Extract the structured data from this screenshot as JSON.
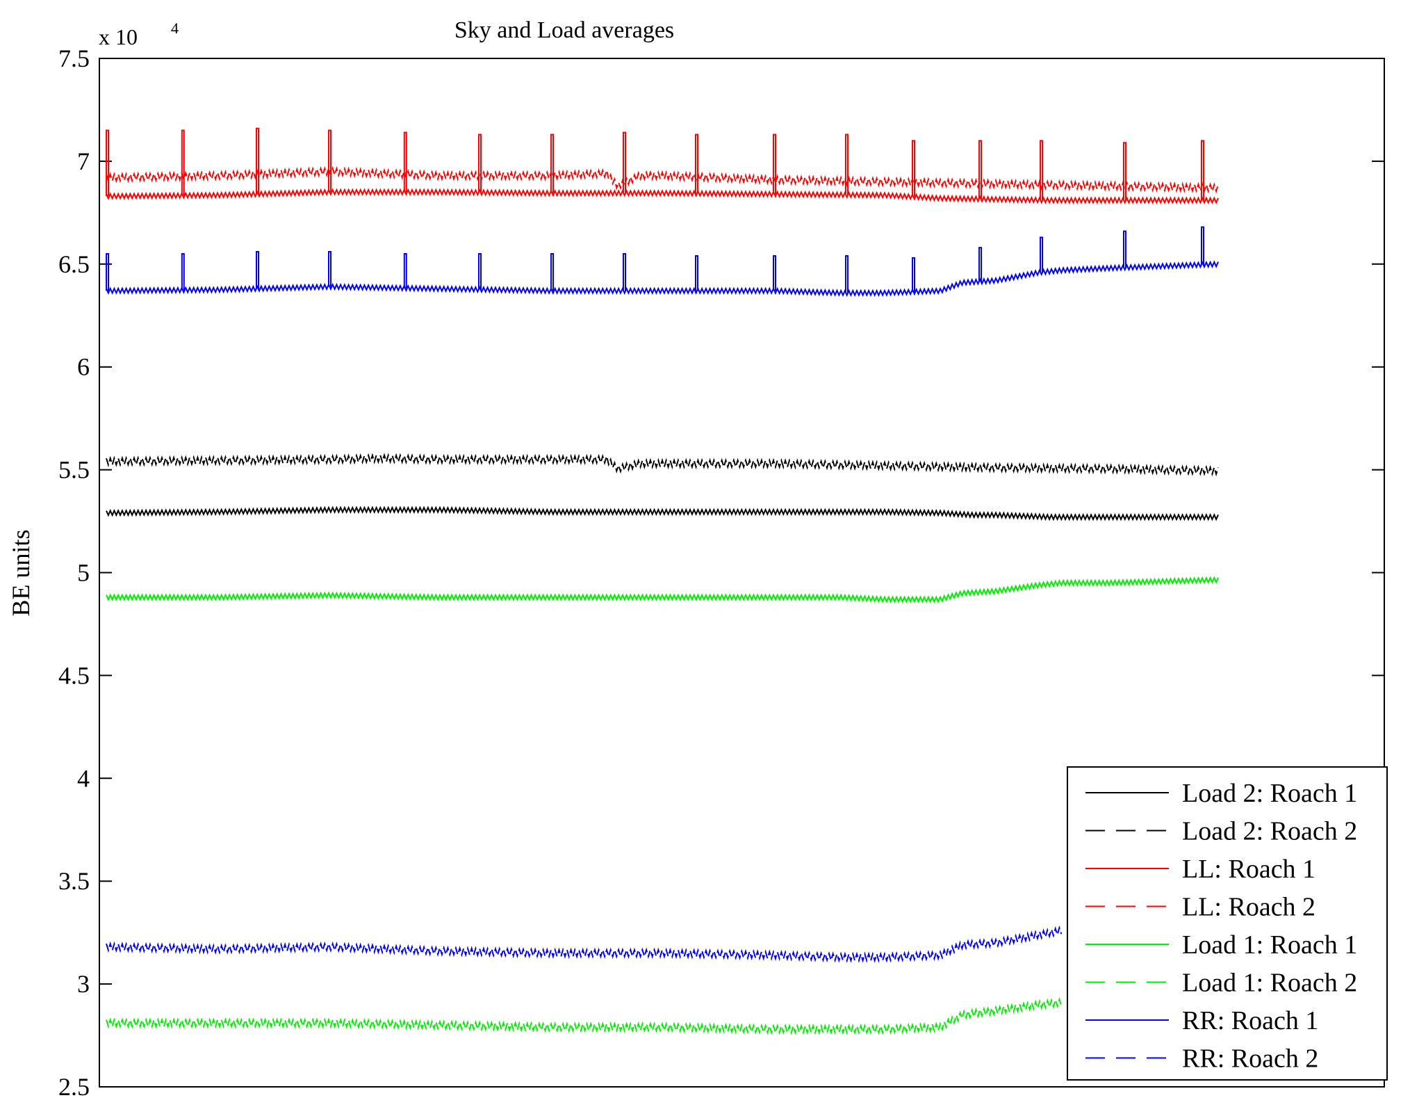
{
  "chart_data": {
    "type": "line",
    "title": "Sky and Load averages",
    "xlabel": "",
    "ylabel": "BE units",
    "y_scale_base": "x 10",
    "y_scale_exp": "4",
    "ylim": [
      25000,
      75000
    ],
    "xlim": [
      0,
      1
    ],
    "x_ticks": false,
    "yticks": [
      25000,
      30000,
      35000,
      40000,
      45000,
      50000,
      55000,
      60000,
      65000,
      70000,
      75000
    ],
    "ytick_labels": [
      "2.5",
      "3",
      "3.5",
      "4",
      "4.5",
      "5",
      "5.5",
      "6",
      "6.5",
      "7",
      "7.5"
    ],
    "grid": false,
    "legend_position": "bottom-right",
    "series": [
      {
        "name": "Load 2: Roach 1",
        "color": "#000000",
        "dash": "solid",
        "x": [
          0,
          0.1,
          0.2,
          0.3,
          0.4,
          0.5,
          0.6,
          0.7,
          0.75,
          0.78,
          0.8,
          0.85,
          0.9,
          0.95,
          1.0
        ],
        "y": [
          52900,
          52950,
          53050,
          53050,
          52950,
          52950,
          52950,
          52950,
          52900,
          52800,
          52800,
          52700,
          52700,
          52700,
          52700
        ]
      },
      {
        "name": "Load 2: Roach 2",
        "color": "#000000",
        "dash": "dashed",
        "x": [
          0,
          0.1,
          0.2,
          0.25,
          0.3,
          0.4,
          0.45,
          0.46,
          0.48,
          0.5,
          0.6,
          0.7,
          0.8,
          0.9,
          1.0
        ],
        "y": [
          55400,
          55450,
          55500,
          55550,
          55500,
          55500,
          55500,
          55050,
          55300,
          55300,
          55300,
          55200,
          55100,
          55050,
          54950
        ]
      },
      {
        "name": "LL: Roach 1",
        "color": "#ff0000",
        "dash": "solid",
        "x": [
          0,
          0.1,
          0.2,
          0.3,
          0.4,
          0.5,
          0.6,
          0.7,
          0.75,
          0.8,
          0.85,
          0.9,
          1.0
        ],
        "y": [
          68300,
          68350,
          68500,
          68500,
          68450,
          68450,
          68400,
          68350,
          68200,
          68150,
          68100,
          68100,
          68100
        ],
        "spikes_x": [
          0,
          0.068,
          0.135,
          0.2,
          0.268,
          0.335,
          0.4,
          0.465,
          0.53,
          0.6,
          0.665,
          0.725,
          0.785,
          0.84,
          0.915,
          0.985
        ],
        "spikes_y": [
          71500,
          71500,
          71600,
          71500,
          71400,
          71300,
          71300,
          71400,
          71300,
          71300,
          71300,
          71000,
          71000,
          71000,
          70900,
          71000
        ]
      },
      {
        "name": "LL: Roach 2",
        "color": "#ff0000",
        "dash": "dashed",
        "x": [
          0,
          0.1,
          0.2,
          0.3,
          0.4,
          0.45,
          0.46,
          0.48,
          0.5,
          0.6,
          0.7,
          0.8,
          0.9,
          1.0
        ],
        "y": [
          69200,
          69300,
          69500,
          69300,
          69300,
          69400,
          68800,
          69300,
          69300,
          69100,
          69000,
          68900,
          68800,
          68700
        ]
      },
      {
        "name": "Load 1: Roach 1",
        "color": "#00ee00",
        "dash": "solid",
        "x": [
          0,
          0.1,
          0.2,
          0.3,
          0.4,
          0.5,
          0.6,
          0.66,
          0.7,
          0.75,
          0.77,
          0.8,
          0.84,
          0.86,
          0.9,
          1.0
        ],
        "y": [
          48800,
          48800,
          48900,
          48800,
          48800,
          48800,
          48800,
          48800,
          48700,
          48700,
          49000,
          49100,
          49400,
          49500,
          49500,
          49650
        ]
      },
      {
        "name": "Load 1: Roach 2",
        "color": "#00ee00",
        "dash": "dashed",
        "x": [
          0,
          0.1,
          0.2,
          0.3,
          0.4,
          0.5,
          0.6,
          0.66,
          0.7,
          0.75,
          0.77,
          0.8,
          0.84,
          0.86
        ],
        "y": [
          28100,
          28100,
          28100,
          28000,
          27900,
          27900,
          27800,
          27800,
          27800,
          27900,
          28500,
          28700,
          29000,
          29100
        ]
      },
      {
        "name": "RR: Roach 1",
        "color": "#0000ff",
        "dash": "solid",
        "x": [
          0,
          0.1,
          0.2,
          0.3,
          0.4,
          0.5,
          0.6,
          0.66,
          0.7,
          0.75,
          0.77,
          0.8,
          0.84,
          0.86,
          0.9,
          1.0
        ],
        "y": [
          63700,
          63750,
          63900,
          63800,
          63700,
          63700,
          63700,
          63600,
          63600,
          63700,
          64100,
          64200,
          64600,
          64700,
          64800,
          65000
        ],
        "spikes_x": [
          0,
          0.068,
          0.135,
          0.2,
          0.268,
          0.335,
          0.4,
          0.465,
          0.53,
          0.6,
          0.665,
          0.725,
          0.785,
          0.84,
          0.915,
          0.985
        ],
        "spikes_y": [
          65500,
          65500,
          65600,
          65600,
          65500,
          65500,
          65500,
          65500,
          65400,
          65400,
          65400,
          65300,
          65800,
          66300,
          66600,
          66800
        ]
      },
      {
        "name": "RR: Roach 2",
        "color": "#0000ff",
        "dash": "dashed",
        "x": [
          0,
          0.1,
          0.2,
          0.3,
          0.4,
          0.5,
          0.6,
          0.66,
          0.7,
          0.75,
          0.77,
          0.8,
          0.84,
          0.86
        ],
        "y": [
          31800,
          31700,
          31800,
          31600,
          31500,
          31500,
          31400,
          31300,
          31300,
          31400,
          31900,
          32000,
          32400,
          32600
        ]
      }
    ]
  }
}
